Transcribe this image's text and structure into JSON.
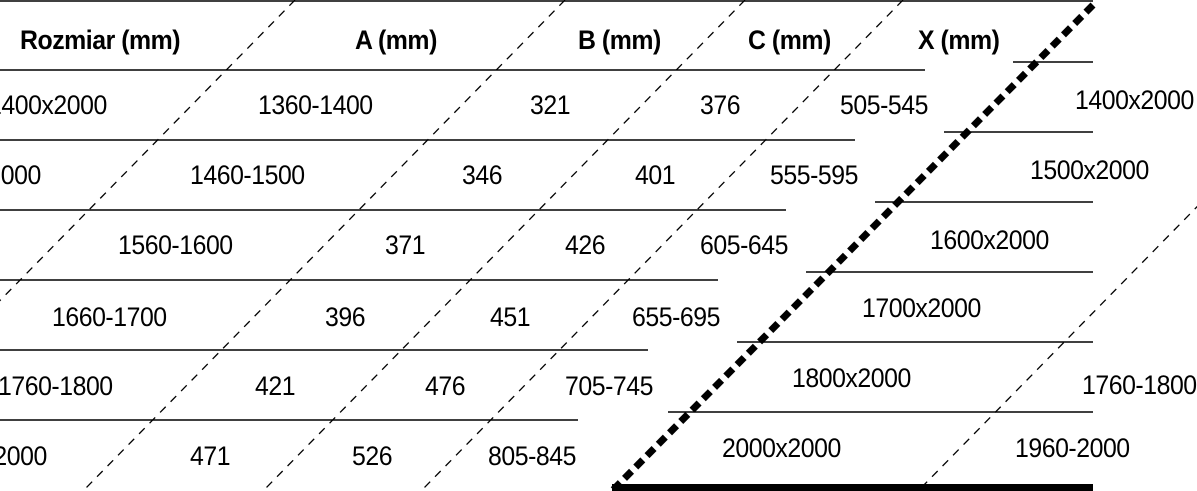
{
  "table": {
    "headers": [
      "Rozmiar (mm)",
      "A (mm)",
      "B (mm)",
      "C (mm)",
      "X (mm)"
    ],
    "rows": [
      [
        "1400x2000",
        "1360-1400",
        "321",
        "376",
        "505-545"
      ],
      [
        "1500x2000",
        "1460-1500",
        "346",
        "401",
        "555-595"
      ],
      [
        "1600x2000",
        "1560-1600",
        "371",
        "426",
        "605-645"
      ],
      [
        "1700x2000",
        "1660-1700",
        "396",
        "451",
        "655-695"
      ],
      [
        "1800x2000",
        "1760-1800",
        "421",
        "476",
        "705-745"
      ],
      [
        "2000x2000",
        "1960-2000",
        "471",
        "526",
        "805-845"
      ]
    ]
  },
  "colors": {
    "background": "#ffffff",
    "text": "#000000",
    "lines": "#000000"
  }
}
